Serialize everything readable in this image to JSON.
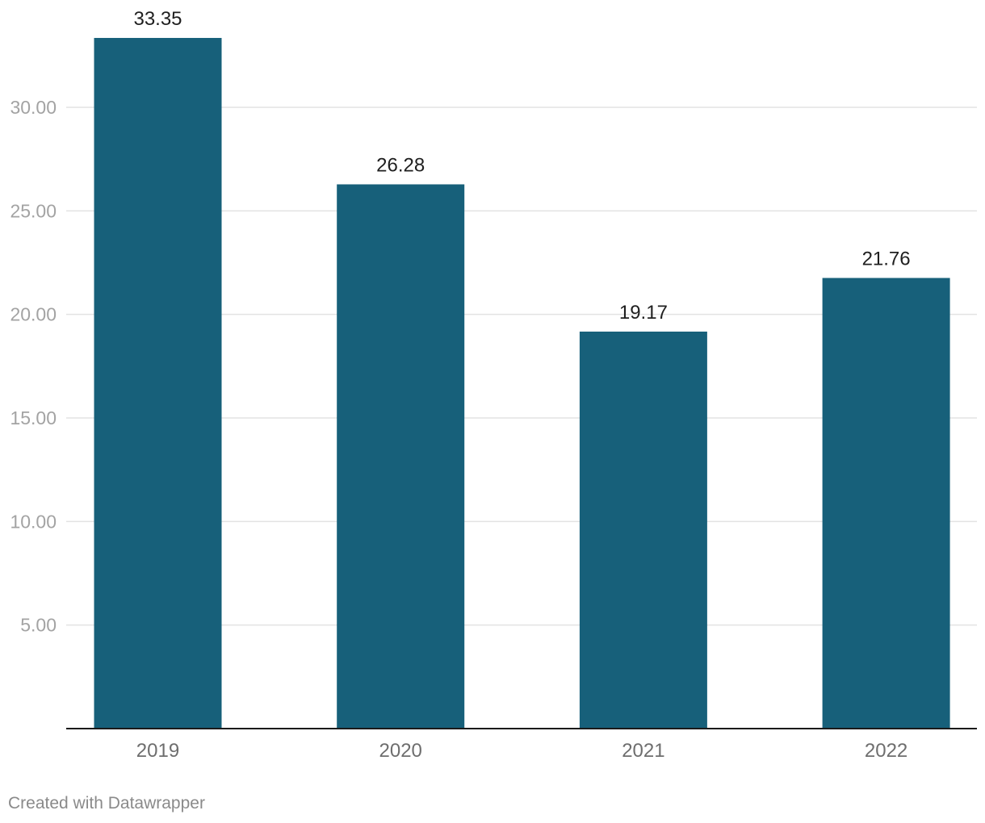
{
  "chart_data": {
    "type": "bar",
    "categories": [
      "2019",
      "2020",
      "2021",
      "2022"
    ],
    "values": [
      33.35,
      26.28,
      19.17,
      21.76
    ],
    "value_labels": [
      "33.35",
      "26.28",
      "19.17",
      "21.76"
    ],
    "y_ticks": [
      5,
      10,
      15,
      20,
      25,
      30
    ],
    "y_tick_labels": [
      "5.00",
      "10.00",
      "15.00",
      "20.00",
      "25.00",
      "30.00"
    ],
    "ylim": [
      0,
      33.35
    ],
    "title": "",
    "xlabel": "",
    "ylabel": "",
    "grid": true,
    "bar_color": "#17607a"
  },
  "footer": {
    "credit": "Created with Datawrapper"
  }
}
